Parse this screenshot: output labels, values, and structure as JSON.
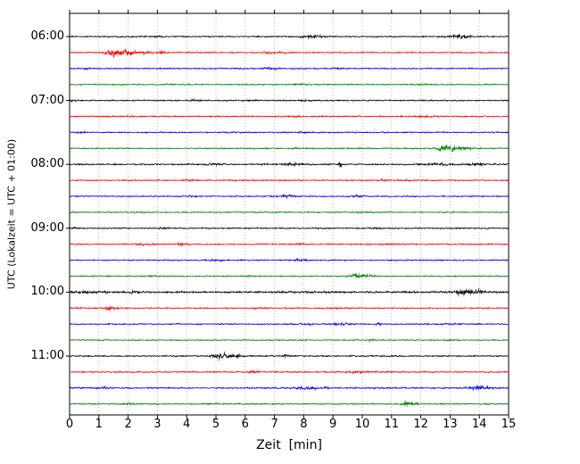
{
  "chart_data": {
    "type": "line",
    "subtype": "seismogram-dayplot",
    "title": "",
    "xlabel": "Zeit  [min]",
    "ylabel": "UTC (Lokalzeit = UTC + 01:00)",
    "xlim": [
      0,
      15
    ],
    "minutes_per_line": 15,
    "grid": "vertical-dotted",
    "grid_color": "#999999",
    "x_tick_labels": [
      "0",
      "1",
      "2",
      "3",
      "4",
      "5",
      "6",
      "7",
      "8",
      "9",
      "10",
      "11",
      "12",
      "13",
      "14",
      "15"
    ],
    "y_tick_labels": [
      "06:00",
      "07:00",
      "08:00",
      "09:00",
      "10:00",
      "11:00"
    ],
    "trace_colors_cycle": [
      "#000000",
      "#ff0000",
      "#0000ff",
      "#008000"
    ],
    "traces": [
      {
        "time": "06:00",
        "color": "#000000",
        "base_amp": 1.0,
        "events": [
          {
            "x": 3.0,
            "amp": 0.7,
            "w": 0.15
          },
          {
            "x": 8.2,
            "amp": 1.8,
            "w": 0.35
          },
          {
            "x": 8.7,
            "amp": 0.9,
            "w": 0.2
          },
          {
            "x": 13.2,
            "amp": 2.6,
            "w": 0.22
          },
          {
            "x": 13.55,
            "amp": 1.8,
            "w": 0.18
          }
        ]
      },
      {
        "time": "06:15",
        "color": "#ff0000",
        "base_amp": 1.0,
        "events": [
          {
            "x": 1.45,
            "amp": 4.8,
            "w": 0.22
          },
          {
            "x": 1.85,
            "amp": 3.0,
            "w": 0.3
          },
          {
            "x": 2.4,
            "amp": 1.2,
            "w": 0.5
          },
          {
            "x": 3.15,
            "amp": 2.0,
            "w": 0.1
          },
          {
            "x": 6.8,
            "amp": 1.0,
            "w": 0.3
          },
          {
            "x": 7.4,
            "amp": 0.7,
            "w": 0.25
          }
        ]
      },
      {
        "time": "06:30",
        "color": "#0000ff",
        "base_amp": 1.0,
        "events": [
          {
            "x": 0.6,
            "amp": 0.5,
            "w": 0.2
          },
          {
            "x": 6.8,
            "amp": 0.9,
            "w": 0.35
          },
          {
            "x": 9.1,
            "amp": 0.5,
            "w": 0.3
          }
        ]
      },
      {
        "time": "06:45",
        "color": "#008000",
        "base_amp": 0.95,
        "events": [
          {
            "x": 3.4,
            "amp": 0.5,
            "w": 0.2
          },
          {
            "x": 7.9,
            "amp": 0.8,
            "w": 0.3
          },
          {
            "x": 12.1,
            "amp": 0.5,
            "w": 0.25
          }
        ]
      },
      {
        "time": "07:00",
        "color": "#000000",
        "base_amp": 1.0,
        "events": [
          {
            "x": 0.15,
            "amp": 1.4,
            "w": 0.12
          },
          {
            "x": 4.35,
            "amp": 0.9,
            "w": 0.18
          },
          {
            "x": 6.3,
            "amp": 0.5,
            "w": 0.2
          },
          {
            "x": 8.1,
            "amp": 0.7,
            "w": 0.25
          }
        ]
      },
      {
        "time": "07:15",
        "color": "#ff0000",
        "base_amp": 1.05,
        "events": [
          {
            "x": 2.0,
            "amp": 0.5,
            "w": 0.3
          },
          {
            "x": 7.6,
            "amp": 0.6,
            "w": 0.3
          },
          {
            "x": 12.3,
            "amp": 0.7,
            "w": 0.4
          }
        ]
      },
      {
        "time": "07:30",
        "color": "#0000ff",
        "base_amp": 1.0,
        "events": [
          {
            "x": 0.4,
            "amp": 0.7,
            "w": 0.2
          },
          {
            "x": 5.5,
            "amp": 0.4,
            "w": 0.3
          },
          {
            "x": 7.9,
            "amp": 0.5,
            "w": 0.3
          }
        ]
      },
      {
        "time": "07:45",
        "color": "#008000",
        "base_amp": 0.95,
        "events": [
          {
            "x": 7.8,
            "amp": 0.7,
            "w": 0.2
          },
          {
            "x": 12.85,
            "amp": 4.2,
            "w": 0.3
          },
          {
            "x": 13.4,
            "amp": 1.8,
            "w": 0.3
          }
        ]
      },
      {
        "time": "08:00",
        "color": "#000000",
        "base_amp": 1.15,
        "events": [
          {
            "x": 5.0,
            "amp": 0.6,
            "w": 0.3
          },
          {
            "x": 7.6,
            "amp": 1.4,
            "w": 0.3
          },
          {
            "x": 9.25,
            "amp": 3.2,
            "w": 0.06
          },
          {
            "x": 12.6,
            "amp": 1.1,
            "w": 0.5
          },
          {
            "x": 13.9,
            "amp": 1.3,
            "w": 0.3
          }
        ]
      },
      {
        "time": "08:15",
        "color": "#ff0000",
        "base_amp": 1.0,
        "events": [
          {
            "x": 4.0,
            "amp": 0.7,
            "w": 0.2
          },
          {
            "x": 6.0,
            "amp": 0.4,
            "w": 0.25
          },
          {
            "x": 10.8,
            "amp": 1.3,
            "w": 0.2
          },
          {
            "x": 11.5,
            "amp": 0.9,
            "w": 0.2
          }
        ]
      },
      {
        "time": "08:30",
        "color": "#0000ff",
        "base_amp": 1.0,
        "events": [
          {
            "x": 4.2,
            "amp": 0.5,
            "w": 0.25
          },
          {
            "x": 6.9,
            "amp": 0.7,
            "w": 0.2
          },
          {
            "x": 7.45,
            "amp": 2.0,
            "w": 0.22
          },
          {
            "x": 9.9,
            "amp": 1.1,
            "w": 0.22
          }
        ]
      },
      {
        "time": "08:45",
        "color": "#008000",
        "base_amp": 0.9,
        "events": [
          {
            "x": 2.5,
            "amp": 0.4,
            "w": 0.25
          },
          {
            "x": 7.3,
            "amp": 0.5,
            "w": 0.25
          },
          {
            "x": 10.0,
            "amp": 0.8,
            "w": 0.3
          }
        ]
      },
      {
        "time": "09:00",
        "color": "#000000",
        "base_amp": 1.0,
        "events": [
          {
            "x": 0.2,
            "amp": 0.8,
            "w": 0.15
          },
          {
            "x": 3.25,
            "amp": 0.9,
            "w": 0.18
          },
          {
            "x": 10.5,
            "amp": 0.4,
            "w": 0.3
          }
        ]
      },
      {
        "time": "09:15",
        "color": "#ff0000",
        "base_amp": 1.0,
        "events": [
          {
            "x": 2.6,
            "amp": 0.9,
            "w": 0.3
          },
          {
            "x": 3.9,
            "amp": 1.1,
            "w": 0.22
          },
          {
            "x": 7.9,
            "amp": 0.9,
            "w": 0.2
          },
          {
            "x": 11.0,
            "amp": 0.4,
            "w": 0.3
          }
        ]
      },
      {
        "time": "09:30",
        "color": "#0000ff",
        "base_amp": 1.0,
        "events": [
          {
            "x": 3.5,
            "amp": 0.6,
            "w": 0.2
          },
          {
            "x": 5.0,
            "amp": 0.9,
            "w": 0.3
          },
          {
            "x": 7.9,
            "amp": 1.3,
            "w": 0.25
          },
          {
            "x": 12.0,
            "amp": 0.4,
            "w": 0.3
          }
        ]
      },
      {
        "time": "09:45",
        "color": "#008000",
        "base_amp": 0.95,
        "events": [
          {
            "x": 2.9,
            "amp": 0.7,
            "w": 0.2
          },
          {
            "x": 6.1,
            "amp": 0.5,
            "w": 0.2
          },
          {
            "x": 9.85,
            "amp": 3.8,
            "w": 0.22
          },
          {
            "x": 10.25,
            "amp": 1.4,
            "w": 0.2
          }
        ]
      },
      {
        "time": "10:00",
        "color": "#000000",
        "base_amp": 1.45,
        "events": [
          {
            "x": 0.6,
            "amp": 0.7,
            "w": 0.6
          },
          {
            "x": 2.1,
            "amp": 0.5,
            "w": 0.4
          },
          {
            "x": 8.0,
            "amp": 0.4,
            "w": 0.3
          },
          {
            "x": 13.5,
            "amp": 2.6,
            "w": 0.35
          },
          {
            "x": 14.0,
            "amp": 1.2,
            "w": 0.2
          }
        ]
      },
      {
        "time": "10:15",
        "color": "#ff0000",
        "base_amp": 1.0,
        "events": [
          {
            "x": 1.35,
            "amp": 2.8,
            "w": 0.13
          },
          {
            "x": 1.62,
            "amp": 1.4,
            "w": 0.12
          },
          {
            "x": 6.5,
            "amp": 0.7,
            "w": 0.25
          },
          {
            "x": 9.0,
            "amp": 0.4,
            "w": 0.3
          }
        ]
      },
      {
        "time": "10:30",
        "color": "#0000ff",
        "base_amp": 1.05,
        "events": [
          {
            "x": 8.1,
            "amp": 0.7,
            "w": 0.3
          },
          {
            "x": 9.2,
            "amp": 1.3,
            "w": 0.35
          },
          {
            "x": 10.55,
            "amp": 1.8,
            "w": 0.08
          },
          {
            "x": 13.0,
            "amp": 0.5,
            "w": 0.3
          }
        ]
      },
      {
        "time": "10:45",
        "color": "#008000",
        "base_amp": 0.9,
        "events": [
          {
            "x": 4.0,
            "amp": 0.4,
            "w": 0.25
          },
          {
            "x": 10.3,
            "amp": 1.6,
            "w": 0.1
          },
          {
            "x": 13.0,
            "amp": 0.5,
            "w": 0.25
          }
        ]
      },
      {
        "time": "11:00",
        "color": "#000000",
        "base_amp": 1.05,
        "events": [
          {
            "x": 5.15,
            "amp": 3.2,
            "w": 0.3
          },
          {
            "x": 5.65,
            "amp": 1.8,
            "w": 0.25
          },
          {
            "x": 7.35,
            "amp": 1.3,
            "w": 0.13
          },
          {
            "x": 11.0,
            "amp": 0.4,
            "w": 0.3
          }
        ]
      },
      {
        "time": "11:15",
        "color": "#ff0000",
        "base_amp": 1.05,
        "events": [
          {
            "x": 6.3,
            "amp": 1.3,
            "w": 0.18
          },
          {
            "x": 9.9,
            "amp": 0.9,
            "w": 0.45
          },
          {
            "x": 12.0,
            "amp": 0.4,
            "w": 0.3
          }
        ]
      },
      {
        "time": "11:30",
        "color": "#0000ff",
        "base_amp": 1.15,
        "events": [
          {
            "x": 1.2,
            "amp": 0.9,
            "w": 0.18
          },
          {
            "x": 8.2,
            "amp": 1.6,
            "w": 0.45
          },
          {
            "x": 13.9,
            "amp": 2.6,
            "w": 0.28
          },
          {
            "x": 14.25,
            "amp": 1.3,
            "w": 0.2
          }
        ]
      },
      {
        "time": "11:45",
        "color": "#008000",
        "base_amp": 1.0,
        "events": [
          {
            "x": 2.0,
            "amp": 0.9,
            "w": 0.22
          },
          {
            "x": 5.0,
            "amp": 0.4,
            "w": 0.3
          },
          {
            "x": 11.5,
            "amp": 3.2,
            "w": 0.18
          },
          {
            "x": 11.8,
            "amp": 1.3,
            "w": 0.2
          }
        ]
      }
    ]
  }
}
